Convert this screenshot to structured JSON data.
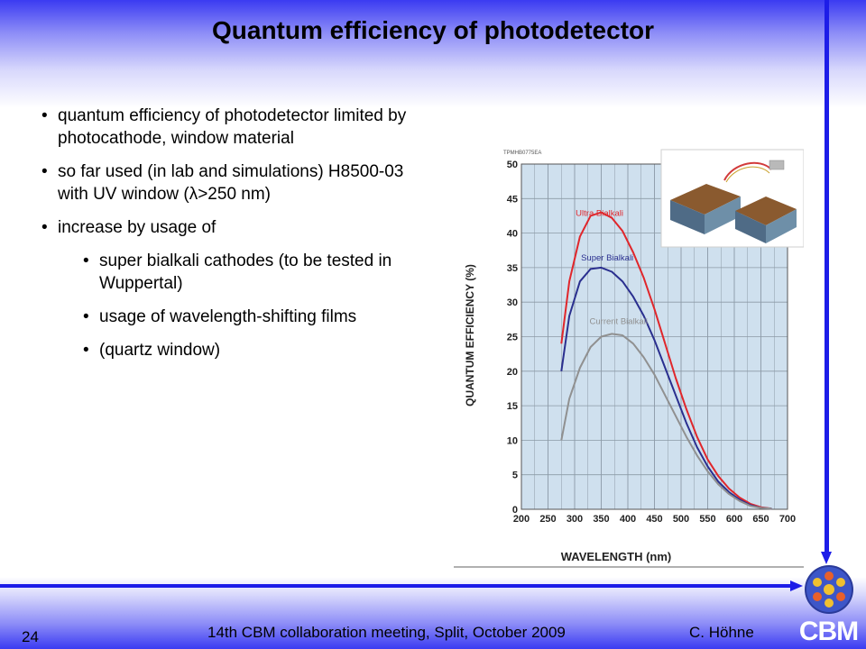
{
  "slide": {
    "title": "Quantum efficiency of photodetector",
    "bullets": [
      "quantum efficiency of photodetector limited by photocathode, window material",
      "so far used (in lab and simulations) H8500-03 with UV window (λ>250 nm)",
      "increase by usage of"
    ],
    "sub_bullets": [
      "super bialkali cathodes (to be tested in Wuppertal)",
      "usage of wavelength-shifting films",
      "(quartz window)"
    ],
    "footer": {
      "page_number": "24",
      "meeting": "14th CBM collaboration meeting, Split, October 2009",
      "author": "C. Höhne"
    },
    "logo_text": "CBM"
  },
  "chart_data": {
    "type": "line",
    "ref_code": "TPMHB0775EA",
    "xlabel": "WAVELENGTH (nm)",
    "ylabel": "QUANTUM EFFICIENCY (%)",
    "xlim": [
      200,
      700
    ],
    "ylim": [
      0,
      50
    ],
    "xticks": [
      200,
      250,
      300,
      350,
      400,
      450,
      500,
      550,
      600,
      650,
      700
    ],
    "yticks": [
      0,
      5,
      10,
      15,
      20,
      25,
      30,
      35,
      40,
      45,
      50
    ],
    "grid": true,
    "series": [
      {
        "name": "Ultra Bialkali",
        "color": "#e0262b",
        "x": [
          275,
          290,
          310,
          330,
          350,
          370,
          390,
          410,
          430,
          450,
          470,
          490,
          510,
          530,
          550,
          570,
          590,
          610,
          630,
          650,
          670
        ],
        "y": [
          24,
          33,
          39.5,
          42.5,
          43,
          42.2,
          40.3,
          37.2,
          33.5,
          29,
          24,
          19,
          14.5,
          10.5,
          7.2,
          4.8,
          3,
          1.7,
          0.8,
          0.3,
          0.1
        ]
      },
      {
        "name": "Super Bialkali",
        "color": "#2a2f8f",
        "x": [
          275,
          290,
          310,
          330,
          350,
          370,
          390,
          410,
          430,
          450,
          470,
          490,
          510,
          530,
          550,
          570,
          590,
          610,
          630,
          650,
          670
        ],
        "y": [
          20,
          28,
          33,
          34.8,
          35,
          34.4,
          33,
          30.8,
          28,
          24.5,
          20.5,
          16.5,
          12.5,
          9,
          6.2,
          4,
          2.5,
          1.4,
          0.6,
          0.2,
          0.1
        ]
      },
      {
        "name": "Current Bialkali",
        "color": "#909090",
        "x": [
          275,
          290,
          310,
          330,
          350,
          370,
          390,
          410,
          430,
          450,
          470,
          490,
          510,
          530,
          550,
          570,
          590,
          610,
          630,
          650,
          670
        ],
        "y": [
          10,
          16,
          20.5,
          23.5,
          25,
          25.4,
          25.2,
          24,
          22,
          19.5,
          16.5,
          13.5,
          10.5,
          7.8,
          5.5,
          3.6,
          2.2,
          1.2,
          0.5,
          0.2,
          0.1
        ]
      }
    ]
  }
}
